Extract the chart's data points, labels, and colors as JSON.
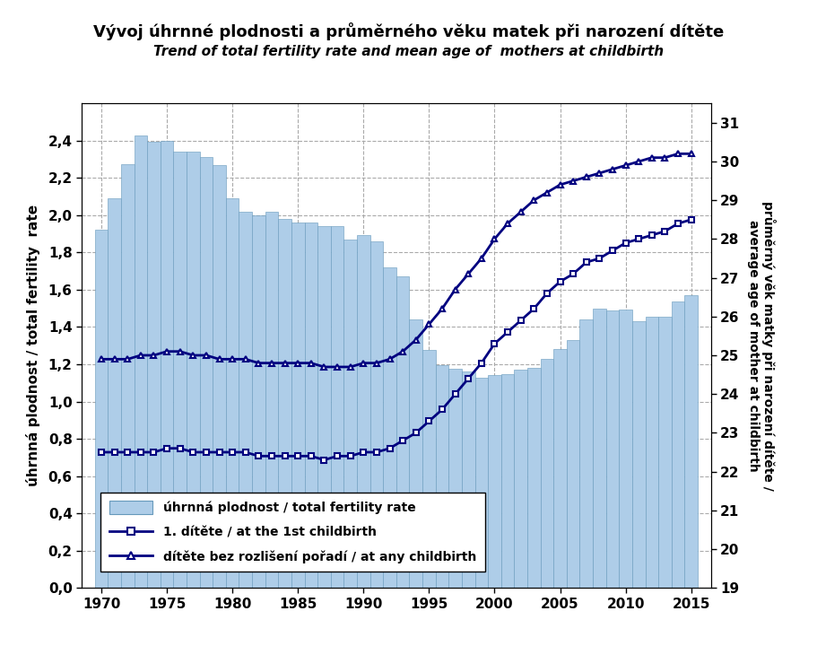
{
  "title_cz": "Vývoj úhrnné plodnosti a průměrného věku matek při narození dítěte",
  "title_en": "Trend of total fertility rate and mean age of  mothers at childbirth",
  "ylabel_left": "úhrnná plodnost / total fertility  rate",
  "ylabel_right": "průměrný věk matky při narození dítěte /\naverage age of mother at childbirth",
  "years": [
    1970,
    1971,
    1972,
    1973,
    1974,
    1975,
    1976,
    1977,
    1978,
    1979,
    1980,
    1981,
    1982,
    1983,
    1984,
    1985,
    1986,
    1987,
    1988,
    1989,
    1990,
    1991,
    1992,
    1993,
    1994,
    1995,
    1996,
    1997,
    1998,
    1999,
    2000,
    2001,
    2002,
    2003,
    2004,
    2005,
    2006,
    2007,
    2008,
    2009,
    2010,
    2011,
    2012,
    2013,
    2014,
    2015
  ],
  "fertility": [
    1.92,
    2.09,
    2.275,
    2.43,
    2.395,
    2.4,
    2.34,
    2.34,
    2.31,
    2.27,
    2.09,
    2.02,
    2.0,
    2.02,
    1.98,
    1.96,
    1.96,
    1.94,
    1.94,
    1.87,
    1.893,
    1.86,
    1.72,
    1.67,
    1.44,
    1.278,
    1.195,
    1.175,
    1.16,
    1.13,
    1.144,
    1.148,
    1.171,
    1.181,
    1.228,
    1.28,
    1.33,
    1.442,
    1.5,
    1.49,
    1.492,
    1.43,
    1.453,
    1.455,
    1.535,
    1.572
  ],
  "age_1st": [
    22.5,
    22.5,
    22.5,
    22.5,
    22.5,
    22.6,
    22.6,
    22.5,
    22.5,
    22.5,
    22.5,
    22.5,
    22.4,
    22.4,
    22.4,
    22.4,
    22.4,
    22.3,
    22.4,
    22.4,
    22.5,
    22.5,
    22.6,
    22.8,
    23.0,
    23.3,
    23.6,
    24.0,
    24.4,
    24.8,
    25.3,
    25.6,
    25.9,
    26.2,
    26.6,
    26.9,
    27.1,
    27.4,
    27.5,
    27.7,
    27.9,
    28.0,
    28.1,
    28.2,
    28.4,
    28.5
  ],
  "age_any": [
    24.9,
    24.9,
    24.9,
    25.0,
    25.0,
    25.1,
    25.1,
    25.0,
    25.0,
    24.9,
    24.9,
    24.9,
    24.8,
    24.8,
    24.8,
    24.8,
    24.8,
    24.7,
    24.7,
    24.7,
    24.8,
    24.8,
    24.9,
    25.1,
    25.4,
    25.8,
    26.2,
    26.7,
    27.1,
    27.5,
    28.0,
    28.4,
    28.7,
    29.0,
    29.2,
    29.4,
    29.5,
    29.6,
    29.7,
    29.8,
    29.9,
    30.0,
    30.1,
    30.1,
    30.2,
    30.2
  ],
  "bar_color": "#aecde8",
  "bar_edge_color": "#6699bb",
  "line_color": "#000080",
  "ylim_left": [
    0.0,
    2.6
  ],
  "ylim_right": [
    19.0,
    31.5
  ],
  "yticks_left": [
    0.0,
    0.2,
    0.4,
    0.6,
    0.8,
    1.0,
    1.2,
    1.4,
    1.6,
    1.8,
    2.0,
    2.2,
    2.4
  ],
  "yticks_right": [
    19,
    20,
    21,
    22,
    23,
    24,
    25,
    26,
    27,
    28,
    29,
    30,
    31
  ],
  "xticks": [
    1970,
    1975,
    1980,
    1985,
    1990,
    1995,
    2000,
    2005,
    2010,
    2015
  ],
  "xlim": [
    1968.5,
    2016.5
  ],
  "legend_bar": "úhrnná plodnost / total fertility rate",
  "legend_line1": "1. dítěte / at the 1st childbirth",
  "legend_line2": "dítěte bez rozlišení pořadí / at any childbirth"
}
